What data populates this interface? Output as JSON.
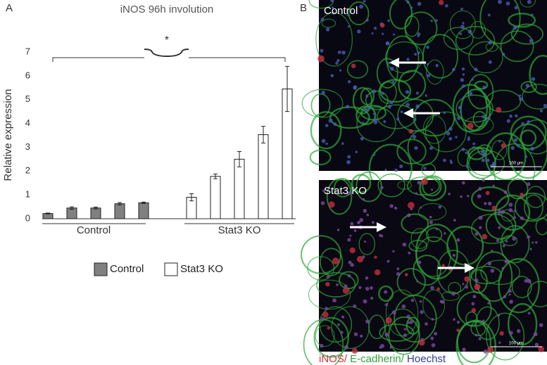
{
  "panel_labels": [
    "A",
    "B"
  ],
  "chart_data": {
    "type": "bar",
    "title": "iNOS 96h involution",
    "y_label": "Relative expression",
    "categories": [
      null,
      null,
      null,
      null,
      null,
      null,
      null,
      null,
      null,
      null,
      null
    ],
    "series": [
      {
        "name": "Control",
        "color": "#808080",
        "values": [
          0.22,
          0.45,
          0.45,
          0.63,
          0.67,
          null,
          null,
          null,
          null,
          null,
          null
        ],
        "errors": [
          0.02,
          0.05,
          0.04,
          0.05,
          0.03,
          null,
          null,
          null,
          null,
          null,
          null
        ]
      },
      {
        "name": "Stat3 KO",
        "color": "#ffffff",
        "values": [
          null,
          null,
          null,
          null,
          null,
          null,
          0.9,
          1.78,
          2.5,
          3.53,
          5.45
        ],
        "errors": [
          null,
          null,
          null,
          null,
          null,
          null,
          0.15,
          0.1,
          0.32,
          0.35,
          0.95
        ]
      }
    ],
    "group_labels": [
      "Control",
      "Stat3 KO"
    ],
    "significance": "*",
    "ylim": [
      0,
      7
    ],
    "yticks": [
      0,
      1,
      2,
      3,
      4,
      5,
      6,
      7
    ],
    "grid": false
  },
  "images": [
    {
      "label": "Control",
      "scale_bar": "100 µm"
    },
    {
      "label": "Stat3 KO",
      "scale_bar": "100 µm"
    }
  ],
  "caption": [
    "iNOS/",
    " E-cadherin/",
    " Hoechst"
  ]
}
